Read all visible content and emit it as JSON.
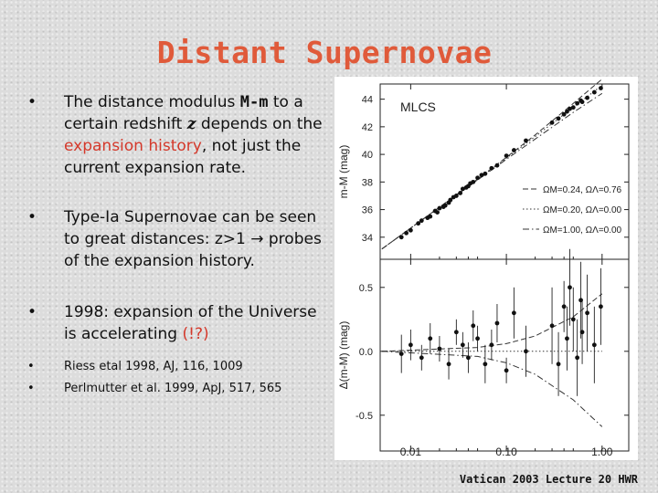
{
  "slide": {
    "title": "Distant Supernovae",
    "footer": "Vatican 2003 Lecture 20 HWR"
  },
  "bullets": [
    {
      "bullet": "•",
      "parts": {
        "a": "The distance modulus ",
        "b": "M-m",
        "c": " to a certain redshift ",
        "d": "z",
        "e": " depends on the ",
        "f": "expansion history",
        "g": ", not just the current expansion rate."
      }
    },
    {
      "bullet": "•",
      "parts": {
        "a": "Type-Ia Supernovae can be seen to great distances: z>1 ",
        "b": "→ probes of the expansion history."
      }
    },
    {
      "bullet": "•",
      "parts": {
        "a": "1998: expansion of the Universe is accelerating ",
        "b": "(!?)"
      }
    },
    {
      "bullet": "•",
      "text": "Riess etal 1998, AJ, 116, 1009"
    },
    {
      "bullet": "•",
      "text": "Perlmutter et al. 1999, ApJ, 517, 565"
    }
  ],
  "colors": {
    "title": "#e05a3a",
    "highlight": "#d4382a",
    "background": "#dcdcdc"
  },
  "chart_data": [
    {
      "type": "scatter",
      "title": "MLCS",
      "xlabel": "",
      "ylabel": "m-M (mag)",
      "xscale": "log",
      "xlim": [
        0.0048,
        1.9
      ],
      "ylim": [
        32.4,
        45.1
      ],
      "yticks": [
        "34",
        "36",
        "38",
        "40",
        "42",
        "44"
      ],
      "grid": false,
      "legend_position": "right-center",
      "series": [
        {
          "name": "ΩM=0.24, ΩΛ=0.76",
          "style": "dashed",
          "points": [
            [
              0.005,
              33.15
            ],
            [
              0.01,
              34.66
            ],
            [
              0.02,
              36.18
            ],
            [
              0.05,
              38.21
            ],
            [
              0.1,
              39.79
            ],
            [
              0.2,
              41.41
            ],
            [
              0.5,
              43.69
            ],
            [
              1.0,
              45.46
            ]
          ]
        },
        {
          "name": "ΩM=0.20, ΩΛ=0.00",
          "style": "dotted",
          "points": [
            [
              0.005,
              33.15
            ],
            [
              0.01,
              34.66
            ],
            [
              0.02,
              36.17
            ],
            [
              0.05,
              38.18
            ],
            [
              0.1,
              39.73
            ],
            [
              0.2,
              41.29
            ],
            [
              0.5,
              43.42
            ],
            [
              1.0,
              45.01
            ]
          ]
        },
        {
          "name": "ΩM=1.00, ΩΛ=0.00",
          "style": "dashdot",
          "points": [
            [
              0.005,
              33.15
            ],
            [
              0.01,
              34.66
            ],
            [
              0.02,
              36.16
            ],
            [
              0.05,
              38.14
            ],
            [
              0.1,
              39.64
            ],
            [
              0.2,
              41.11
            ],
            [
              0.5,
              43.04
            ],
            [
              1.0,
              44.42
            ]
          ]
        }
      ],
      "data_points": [
        [
          0.008,
          34.0
        ],
        [
          0.009,
          34.3
        ],
        [
          0.01,
          34.5
        ],
        [
          0.012,
          35.0
        ],
        [
          0.013,
          35.2
        ],
        [
          0.015,
          35.4
        ],
        [
          0.016,
          35.5
        ],
        [
          0.018,
          35.9
        ],
        [
          0.019,
          35.8
        ],
        [
          0.02,
          36.1
        ],
        [
          0.022,
          36.2
        ],
        [
          0.023,
          36.3
        ],
        [
          0.025,
          36.5
        ],
        [
          0.026,
          36.7
        ],
        [
          0.028,
          36.9
        ],
        [
          0.03,
          37.0
        ],
        [
          0.033,
          37.2
        ],
        [
          0.035,
          37.5
        ],
        [
          0.038,
          37.6
        ],
        [
          0.04,
          37.7
        ],
        [
          0.042,
          37.9
        ],
        [
          0.045,
          38.0
        ],
        [
          0.05,
          38.3
        ],
        [
          0.055,
          38.5
        ],
        [
          0.06,
          38.6
        ],
        [
          0.07,
          39.0
        ],
        [
          0.08,
          39.2
        ],
        [
          0.1,
          39.9
        ],
        [
          0.12,
          40.3
        ],
        [
          0.16,
          41.0
        ],
        [
          0.3,
          42.3
        ],
        [
          0.35,
          42.6
        ],
        [
          0.4,
          42.9
        ],
        [
          0.43,
          43.1
        ],
        [
          0.46,
          43.3
        ],
        [
          0.5,
          43.4
        ],
        [
          0.55,
          43.7
        ],
        [
          0.6,
          43.9
        ],
        [
          0.62,
          43.8
        ],
        [
          0.7,
          44.1
        ],
        [
          0.83,
          44.5
        ],
        [
          0.97,
          44.8
        ]
      ]
    },
    {
      "type": "scatter",
      "title": "",
      "xlabel": "",
      "ylabel": "Δ(m-M) (mag)",
      "xscale": "log",
      "xlim": [
        0.0048,
        1.9
      ],
      "ylim": [
        -0.78,
        0.72
      ],
      "xticks": [
        "0.01",
        "0.10",
        "1.00"
      ],
      "yticks": [
        "0.5",
        "0.0",
        "-0.5"
      ],
      "grid": false,
      "series": [
        {
          "name": "ΩM=0.24, ΩΛ=0.76",
          "style": "dashed",
          "points": [
            [
              0.005,
              0.0
            ],
            [
              0.05,
              0.03
            ],
            [
              0.1,
              0.06
            ],
            [
              0.2,
              0.12
            ],
            [
              0.5,
              0.27
            ],
            [
              1.0,
              0.45
            ]
          ]
        },
        {
          "name": "ΩM=0.20, ΩΛ=0.00",
          "style": "dotted",
          "points": [
            [
              0.005,
              0.0
            ],
            [
              0.1,
              0.0
            ],
            [
              1.0,
              0.0
            ]
          ]
        },
        {
          "name": "ΩM=1.00, ΩΛ=0.00",
          "style": "dashdot",
          "points": [
            [
              0.005,
              0.0
            ],
            [
              0.05,
              -0.04
            ],
            [
              0.1,
              -0.09
            ],
            [
              0.2,
              -0.18
            ],
            [
              0.5,
              -0.38
            ],
            [
              1.0,
              -0.59
            ]
          ]
        }
      ],
      "data_points": [
        [
          0.008,
          -0.02,
          0.15
        ],
        [
          0.01,
          0.05,
          0.12
        ],
        [
          0.013,
          -0.05,
          0.1
        ],
        [
          0.016,
          0.1,
          0.12
        ],
        [
          0.02,
          0.02,
          0.1
        ],
        [
          0.025,
          -0.1,
          0.12
        ],
        [
          0.03,
          0.15,
          0.1
        ],
        [
          0.035,
          0.05,
          0.1
        ],
        [
          0.04,
          -0.05,
          0.12
        ],
        [
          0.045,
          0.2,
          0.12
        ],
        [
          0.05,
          0.1,
          0.1
        ],
        [
          0.06,
          -0.1,
          0.15
        ],
        [
          0.07,
          0.05,
          0.12
        ],
        [
          0.08,
          0.22,
          0.15
        ],
        [
          0.1,
          -0.15,
          0.1
        ],
        [
          0.12,
          0.3,
          0.2
        ],
        [
          0.16,
          0.0,
          0.2
        ],
        [
          0.3,
          0.2,
          0.3
        ],
        [
          0.35,
          -0.1,
          0.25
        ],
        [
          0.4,
          0.35,
          0.2
        ],
        [
          0.43,
          0.1,
          0.25
        ],
        [
          0.46,
          0.5,
          0.3
        ],
        [
          0.5,
          0.25,
          0.25
        ],
        [
          0.55,
          -0.05,
          0.3
        ],
        [
          0.6,
          0.4,
          0.3
        ],
        [
          0.62,
          0.15,
          0.25
        ],
        [
          0.7,
          0.3,
          0.3
        ],
        [
          0.83,
          0.05,
          0.3
        ],
        [
          0.97,
          0.35,
          0.3
        ]
      ]
    }
  ]
}
